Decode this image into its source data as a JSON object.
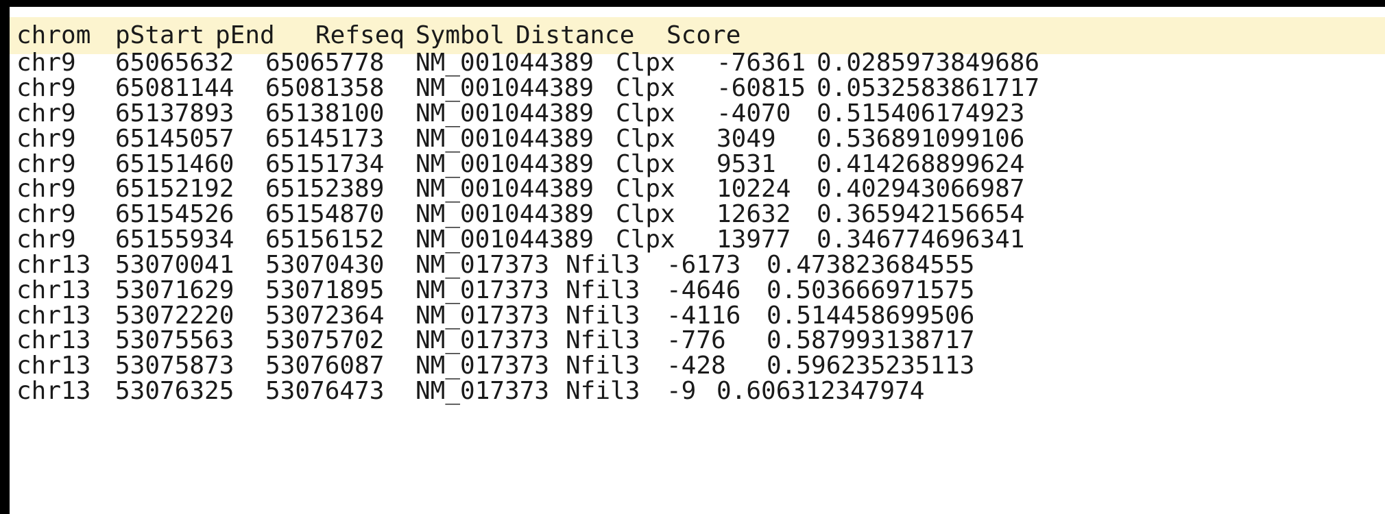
{
  "table": {
    "headers": [
      "chrom",
      "pStart",
      "pEnd",
      "Refseq",
      "Symbol",
      "Distance",
      "Score"
    ],
    "rows": [
      [
        "chr9",
        "65065632",
        "65065778",
        "NM_001044389",
        "Clpx",
        "-76361",
        "0.0285973849686"
      ],
      [
        "chr9",
        "65081144",
        "65081358",
        "NM_001044389",
        "Clpx",
        "-60815",
        "0.0532583861717"
      ],
      [
        "chr9",
        "65137893",
        "65138100",
        "NM_001044389",
        "Clpx",
        "-4070",
        "0.515406174923"
      ],
      [
        "chr9",
        "65145057",
        "65145173",
        "NM_001044389",
        "Clpx",
        "3049",
        "0.536891099106"
      ],
      [
        "chr9",
        "65151460",
        "65151734",
        "NM_001044389",
        "Clpx",
        "9531",
        "0.414268899624"
      ],
      [
        "chr9",
        "65152192",
        "65152389",
        "NM_001044389",
        "Clpx",
        "10224",
        "0.402943066987"
      ],
      [
        "chr9",
        "65154526",
        "65154870",
        "NM_001044389",
        "Clpx",
        "12632",
        "0.365942156654"
      ],
      [
        "chr9",
        "65155934",
        "65156152",
        "NM_001044389",
        "Clpx",
        "13977",
        "0.346774696341"
      ],
      [
        "chr13",
        "53070041",
        "53070430",
        "NM_017373",
        "Nfil3",
        "-6173",
        "0.473823684555"
      ],
      [
        "chr13",
        "53071629",
        "53071895",
        "NM_017373",
        "Nfil3",
        "-4646",
        "0.503666971575"
      ],
      [
        "chr13",
        "53072220",
        "53072364",
        "NM_017373",
        "Nfil3",
        "-4116",
        "0.514458699506"
      ],
      [
        "chr13",
        "53075563",
        "53075702",
        "NM_017373",
        "Nfil3",
        "-776",
        "0.587993138717"
      ],
      [
        "chr13",
        "53075873",
        "53076087",
        "NM_017373",
        "Nfil3",
        "-428",
        "0.596235235113"
      ],
      [
        "chr13",
        "53076325",
        "53076473",
        "NM_017373",
        "Nfil3",
        "-9",
        "0.606312347974"
      ]
    ]
  },
  "colors": {
    "header_background": "#fcf4cf",
    "text": "#1a1a1a",
    "frame_border": "#000000"
  }
}
